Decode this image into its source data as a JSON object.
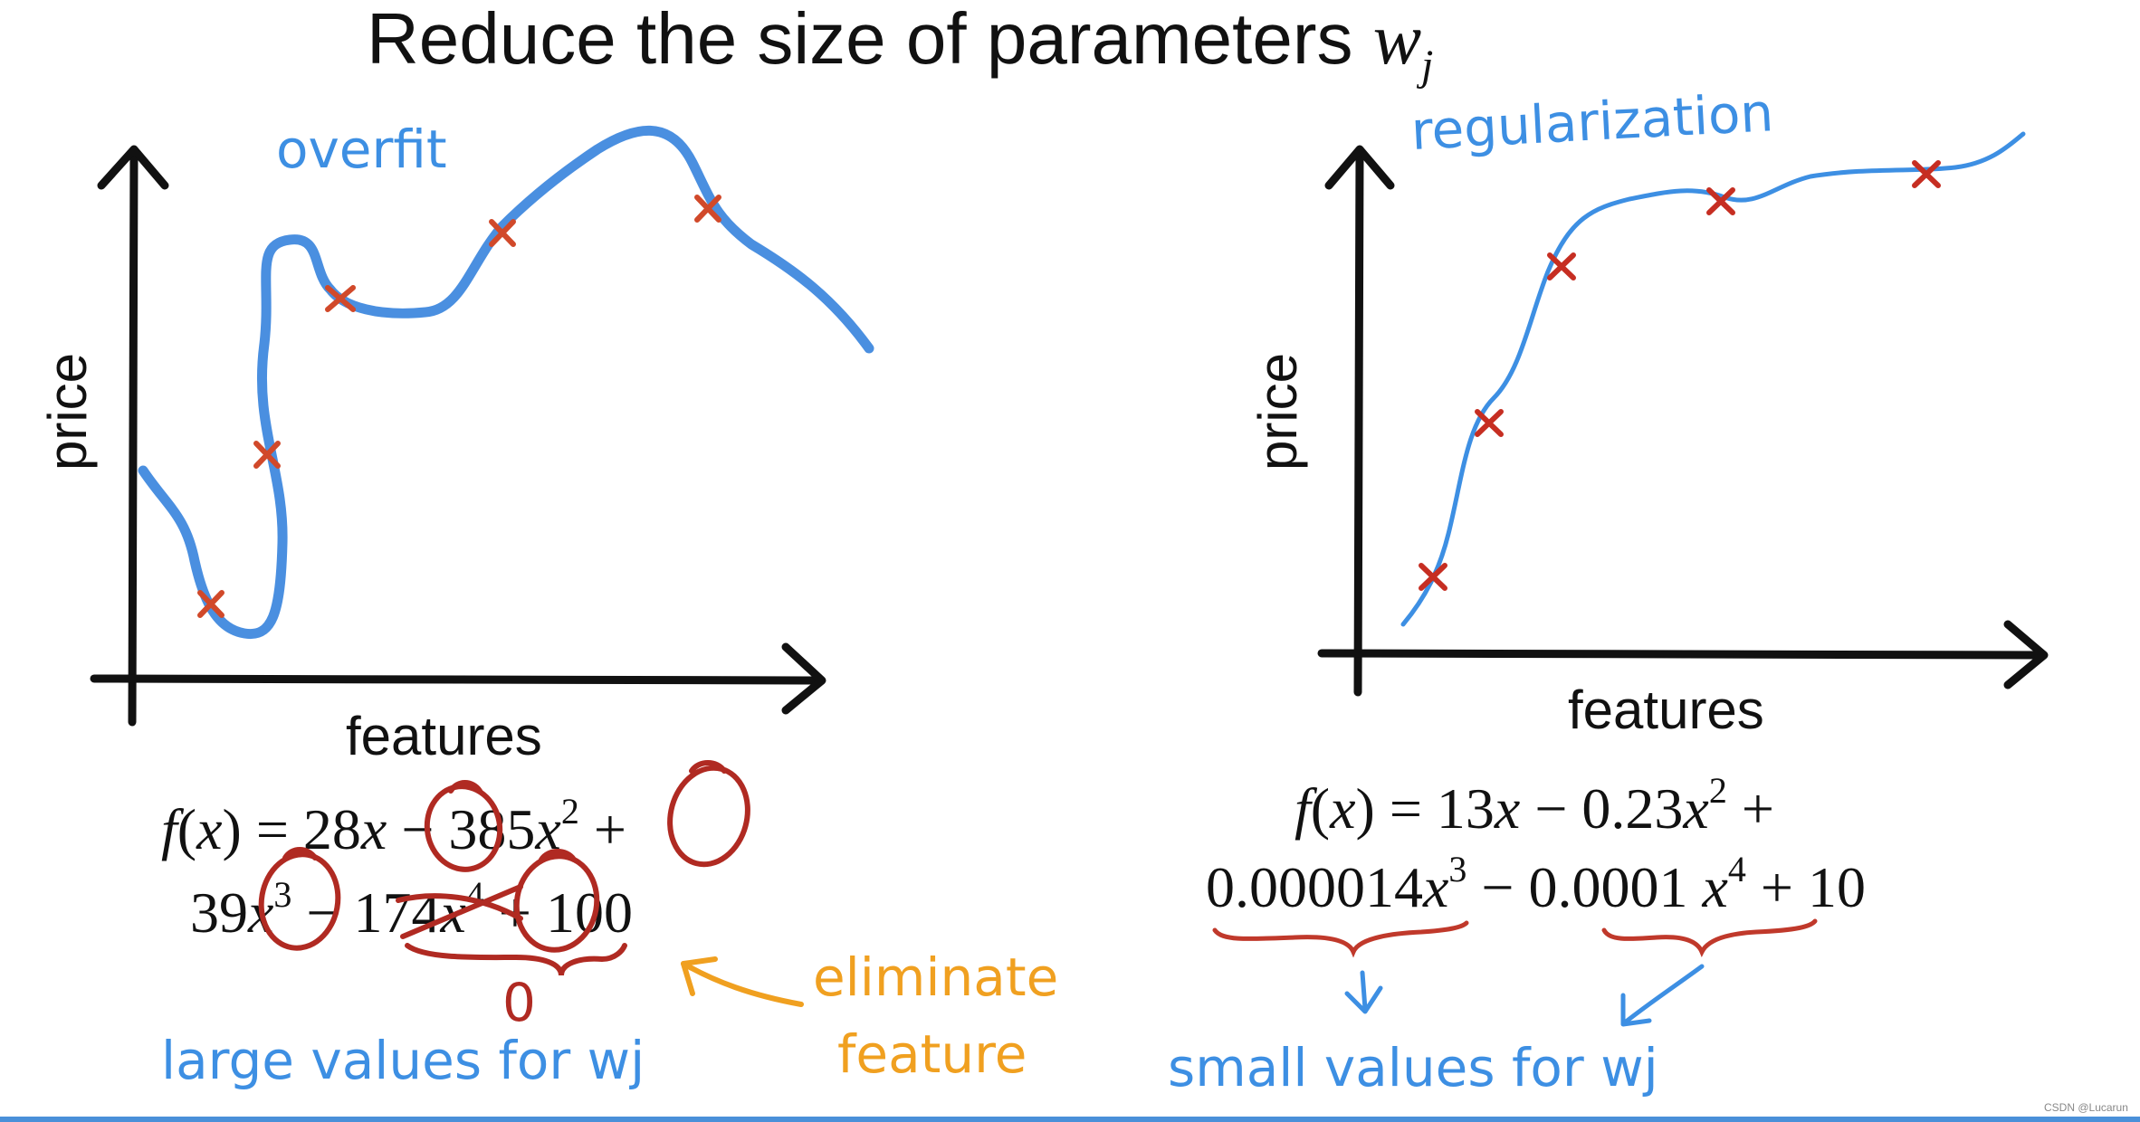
{
  "title": {
    "main": "Reduce the size of parameters ",
    "var": "w",
    "sub": "j"
  },
  "left_panel": {
    "annotation": "overfit",
    "ylabel": "price",
    "xlabel": "features",
    "equation": {
      "line1": [
        "f",
        "(",
        "x",
        ")",
        " = 28",
        "x",
        " − 385",
        "x",
        "2",
        " +"
      ],
      "line2": [
        "39",
        "x",
        "3",
        " − ",
        "174",
        "x",
        "4",
        " + 100"
      ]
    },
    "zero_mark": "0",
    "eliminate_label_1": "eliminate",
    "eliminate_label_2": "feature",
    "bottom_note": "large values for wj"
  },
  "right_panel": {
    "annotation": "regularization",
    "ylabel": "price",
    "xlabel": "features",
    "equation": {
      "line1": [
        "f",
        "(",
        "x",
        ")",
        " = 13",
        "x",
        " − 0.23",
        "x",
        "2",
        " +"
      ],
      "line2": [
        "0.000014",
        "x",
        "3",
        " − ",
        "0.0001",
        " ",
        "x",
        "4",
        " + 10"
      ]
    },
    "bottom_note": "small values for wj"
  },
  "colors": {
    "ink": "#111111",
    "curve_blue": "#4a8fe0",
    "handwriting_blue": "#3d8fe3",
    "marker_red": "#c0392b",
    "orange": "#f0a020",
    "bottom_rule": "#4a90d9"
  },
  "watermark": "CSDN @Lucarun"
}
